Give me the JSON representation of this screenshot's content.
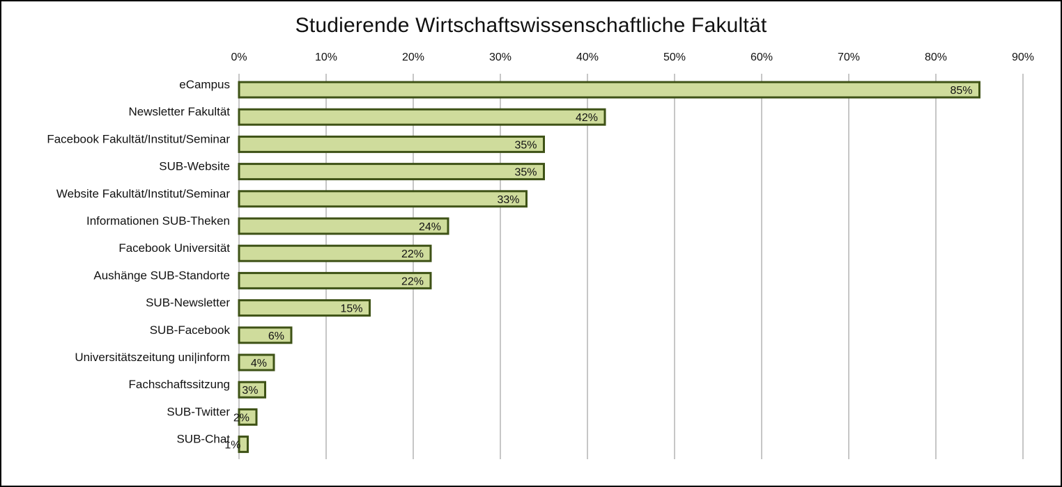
{
  "chart_data": {
    "type": "bar",
    "orientation": "horizontal",
    "title": "Studierende Wirtschaftswissenschaftliche Fakultät",
    "xlabel": "",
    "ylabel": "",
    "xlim": [
      0,
      90
    ],
    "x_tick_values": [
      0,
      10,
      20,
      30,
      40,
      50,
      60,
      70,
      80,
      90
    ],
    "x_tick_labels": [
      "0%",
      "10%",
      "20%",
      "30%",
      "40%",
      "50%",
      "60%",
      "70%",
      "80%",
      "90%"
    ],
    "x_axis_position": "top",
    "grid": true,
    "legend": "none",
    "categories": [
      "eCampus",
      "Newsletter Fakultät",
      "Facebook Fakultät/Institut/Seminar",
      "SUB-Website",
      "Website Fakultät/Institut/Seminar",
      "Informationen SUB-Theken",
      "Facebook Universität",
      "Aushänge SUB-Standorte",
      "SUB-Newsletter",
      "SUB-Facebook",
      "Universitätszeitung uni|inform",
      "Fachschaftssitzung",
      "SUB-Twitter",
      "SUB-Chat"
    ],
    "values": [
      85,
      42,
      35,
      35,
      33,
      24,
      22,
      22,
      15,
      6,
      4,
      3,
      2,
      1
    ],
    "data_labels": [
      "85%",
      "42%",
      "35%",
      "35%",
      "33%",
      "24%",
      "22%",
      "22%",
      "15%",
      "6%",
      "4%",
      "3%",
      "2%",
      "1%"
    ],
    "colors": {
      "bar_fill": "#cfdc9c",
      "bar_stroke": "#3e5216",
      "grid": "#8c8c8c",
      "text": "#111111"
    }
  }
}
